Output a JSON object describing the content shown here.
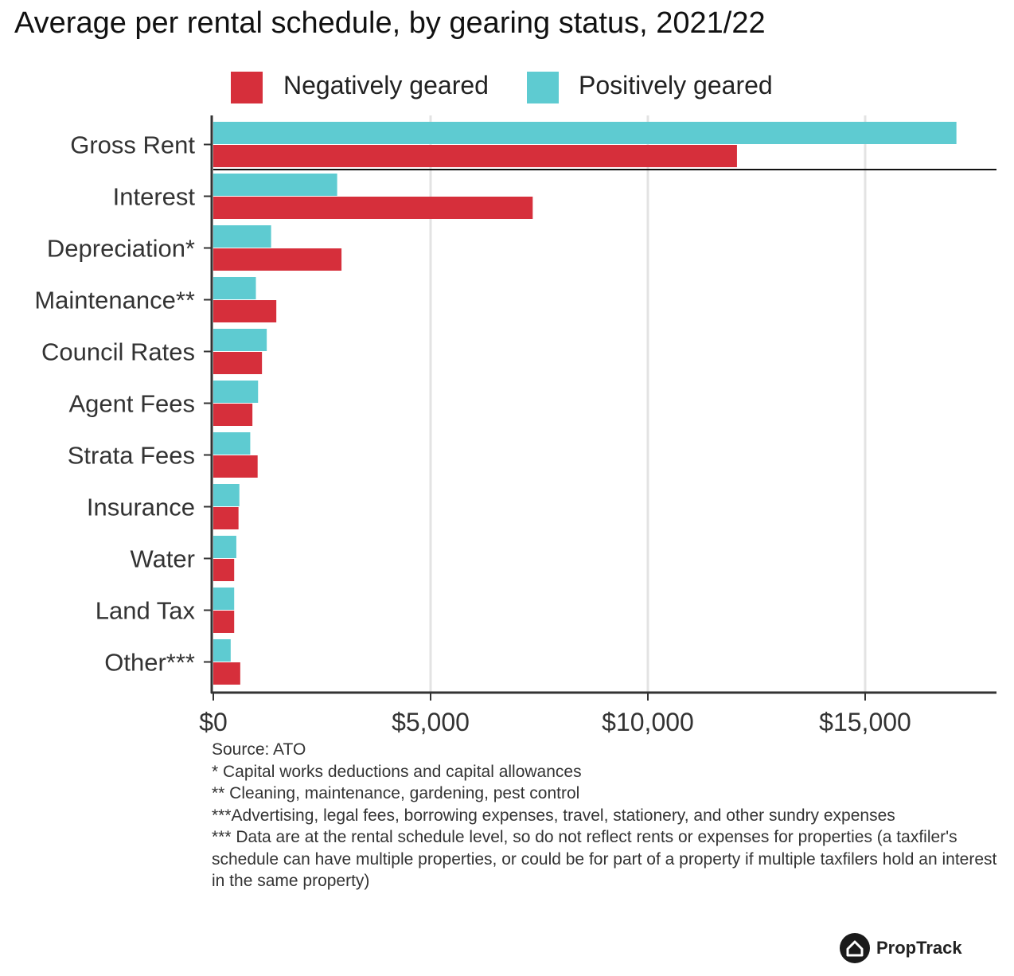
{
  "chart_data": {
    "type": "bar",
    "orientation": "horizontal",
    "title": "Average per rental schedule, by gearing status, 2021/22",
    "categories": [
      "Gross Rent",
      "Interest",
      "Depreciation*",
      "Maintenance**",
      "Council Rates",
      "Agent Fees",
      "Strata Fees",
      "Insurance",
      "Water",
      "Land Tax",
      "Other***"
    ],
    "series": [
      {
        "name": "Negatively geared",
        "color": "#d62f3b",
        "values": [
          12050,
          7350,
          2950,
          1450,
          1120,
          900,
          1020,
          580,
          480,
          480,
          620
        ]
      },
      {
        "name": "Positively geared",
        "color": "#5ecbd1",
        "values": [
          17100,
          2850,
          1330,
          980,
          1230,
          1030,
          850,
          600,
          530,
          480,
          400
        ]
      }
    ],
    "legend_position": "top",
    "xlim": [
      0,
      18000
    ],
    "x_ticks": [
      0,
      5000,
      10000,
      15000
    ],
    "x_tick_labels": [
      "$0",
      "$5,000",
      "$10,000",
      "$15,000"
    ],
    "grid": true,
    "xlabel": "",
    "ylabel": ""
  },
  "notes": [
    "Source: ATO",
    "* Capital works deductions and capital allowances",
    "** Cleaning, maintenance, gardening, pest control",
    "***Advertising, legal fees, borrowing expenses, travel, stationery, and other sundry expenses",
    "*** Data are at the rental schedule level, so do not reflect rents or expenses for properties (a taxfiler's schedule can have multiple properties, or could be for part of a property if multiple taxfilers hold an interest in the same property)"
  ],
  "brand": {
    "name": "PropTrack",
    "logo_icon": "house-icon"
  }
}
